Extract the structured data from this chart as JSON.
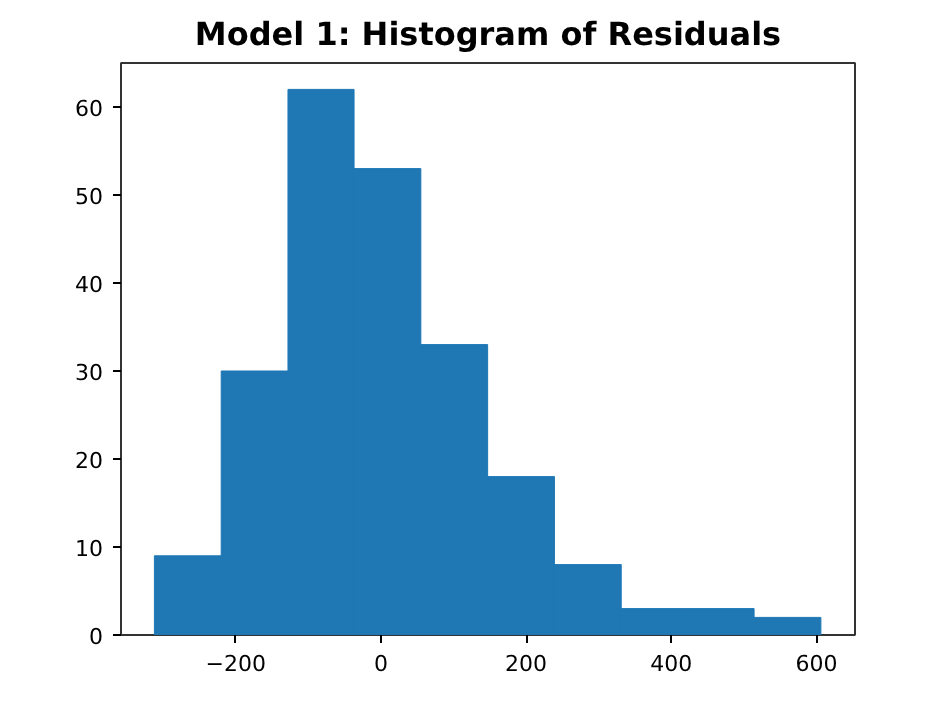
{
  "chart_data": {
    "type": "histogram",
    "title": "Model 1: Histogram of Residuals",
    "bins": [
      -312,
      -220,
      -128,
      -37,
      55,
      147,
      239,
      331,
      422,
      514,
      606
    ],
    "values": [
      9,
      30,
      62,
      53,
      33,
      18,
      8,
      3,
      3,
      2
    ],
    "color": "#1f77b4",
    "xlim": [
      -358,
      653
    ],
    "xticks": [
      {
        "value": -200,
        "label": "−200"
      },
      0,
      200,
      400,
      600
    ],
    "ylim": [
      0,
      65
    ],
    "yticks": [
      0,
      10,
      20,
      30,
      40,
      50,
      60
    ],
    "grid": false
  }
}
